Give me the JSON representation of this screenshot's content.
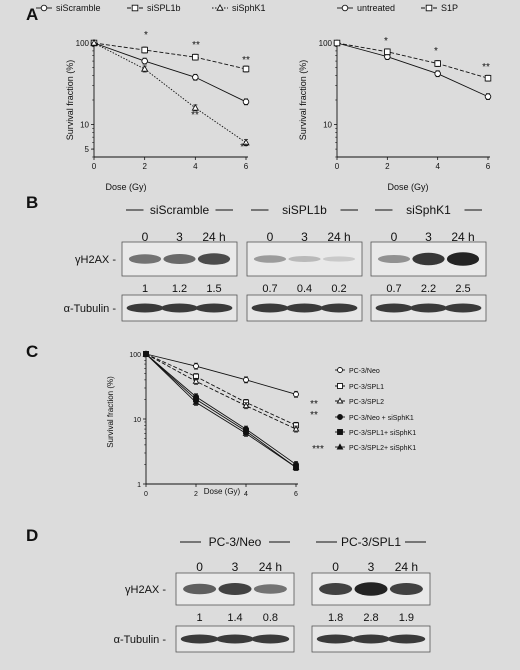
{
  "panels": {
    "A": "A",
    "B": "B",
    "C": "C",
    "D": "D"
  },
  "chart_data": [
    {
      "type": "line",
      "panel": "A-left",
      "xlabel": "Dose (Gy)",
      "ylabel": "Survival fraction (%)",
      "x": [
        0,
        2,
        4,
        6
      ],
      "xticks": [
        "0",
        "2",
        "4",
        "6"
      ],
      "yticks": [
        "5",
        "10",
        "100"
      ],
      "yscale": "log",
      "ylim": [
        4,
        100
      ],
      "legend_placement": "top",
      "series": [
        {
          "name": "siScramble",
          "marker": "circle",
          "dash": "solid",
          "values": [
            100,
            60,
            38,
            19
          ]
        },
        {
          "name": "siSPL1b",
          "marker": "square",
          "dash": "dashed",
          "values": [
            100,
            82,
            67,
            48
          ]
        },
        {
          "name": "siSphK1",
          "marker": "triangle",
          "dash": "dotted",
          "values": [
            100,
            48,
            16,
            6
          ]
        }
      ],
      "annotations": [
        "*",
        "**",
        "**",
        "**",
        "**"
      ]
    },
    {
      "type": "line",
      "panel": "A-right",
      "xlabel": "Dose (Gy)",
      "ylabel": "Survival fraction (%)",
      "x": [
        0,
        2,
        4,
        6
      ],
      "xticks": [
        "0",
        "2",
        "4",
        "6"
      ],
      "yticks": [
        "10",
        "100"
      ],
      "yscale": "log",
      "ylim": [
        4,
        100
      ],
      "legend_placement": "top",
      "series": [
        {
          "name": "untreated",
          "marker": "circle",
          "dash": "solid",
          "values": [
            100,
            68,
            42,
            22
          ]
        },
        {
          "name": "S1P",
          "marker": "square",
          "dash": "dashed",
          "values": [
            100,
            78,
            56,
            37
          ]
        }
      ],
      "annotations": [
        "*",
        "*",
        "**"
      ]
    },
    {
      "type": "line",
      "panel": "C",
      "xlabel": "Dose (Gy)",
      "ylabel": "Survival fraction (%)",
      "x": [
        0,
        2,
        4,
        6
      ],
      "xticks": [
        "0",
        "2",
        "4",
        "6"
      ],
      "yticks": [
        "1",
        "10",
        "100"
      ],
      "yscale": "log",
      "ylim": [
        1,
        100
      ],
      "legend_placement": "right",
      "series": [
        {
          "name": "PC-3/Neo",
          "marker": "circle-open",
          "dash": "solid",
          "values": [
            100,
            65,
            40,
            24
          ]
        },
        {
          "name": "PC-3/SPL1",
          "marker": "square-open",
          "dash": "dashed",
          "values": [
            100,
            45,
            18,
            8
          ]
        },
        {
          "name": "PC-3/SPL2",
          "marker": "triangle-open",
          "dash": "dashed",
          "values": [
            100,
            38,
            16,
            7
          ]
        },
        {
          "name": "PC-3/Neo + siSphK1",
          "marker": "circle-filled",
          "dash": "solid",
          "values": [
            100,
            22,
            7,
            2
          ]
        },
        {
          "name": "PC-3/SPL1+ siSphK1",
          "marker": "square-filled",
          "dash": "solid",
          "values": [
            100,
            20,
            6.5,
            1.8
          ]
        },
        {
          "name": "PC-3/SPL2+ siSphK1",
          "marker": "triangle-filled",
          "dash": "solid",
          "values": [
            100,
            18,
            6,
            1.8
          ]
        }
      ],
      "annotations": [
        "**",
        "**",
        "***"
      ]
    }
  ],
  "blotB": {
    "groups": [
      "siScramble",
      "siSPL1b",
      "siSphK1"
    ],
    "timepoints": [
      "0",
      "3",
      "24 h"
    ],
    "row_labels": {
      "h2ax": "γH2AX -",
      "tubulin": "α-Tubulin -"
    },
    "quant": [
      [
        "1",
        "1.2",
        "1.5"
      ],
      [
        "0.7",
        "0.4",
        "0.2"
      ],
      [
        "0.7",
        "2.2",
        "2.5"
      ]
    ],
    "intensity": [
      [
        0.55,
        0.6,
        0.75
      ],
      [
        0.35,
        0.2,
        0.12
      ],
      [
        0.4,
        0.85,
        0.95
      ]
    ]
  },
  "blotD": {
    "groups": [
      "PC-3/Neo",
      "PC-3/SPL1"
    ],
    "timepoints": [
      "0",
      "3",
      "24 h"
    ],
    "row_labels": {
      "h2ax": "γH2AX -",
      "tubulin": "α-Tubulin -"
    },
    "quant": [
      [
        "1",
        "1.4",
        "0.8"
      ],
      [
        "1.8",
        "2.8",
        "1.9"
      ]
    ],
    "intensity": [
      [
        0.65,
        0.8,
        0.55
      ],
      [
        0.8,
        0.95,
        0.8
      ]
    ]
  }
}
